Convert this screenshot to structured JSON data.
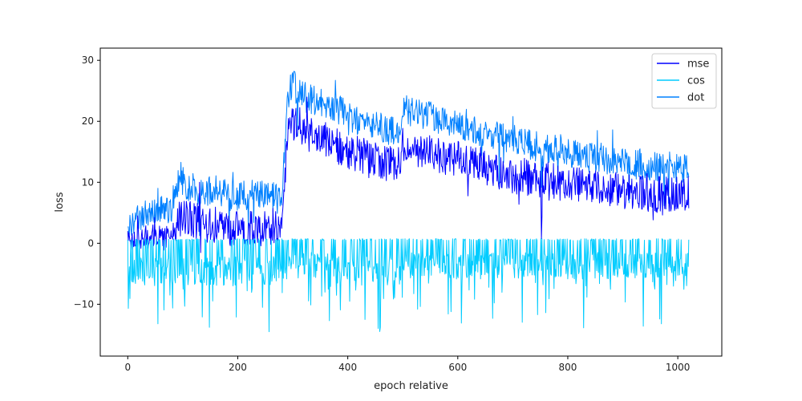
{
  "chart_data": {
    "type": "line",
    "title": "",
    "xlabel": "epoch relative",
    "ylabel": "loss",
    "xlim": [
      -50,
      1080
    ],
    "ylim": [
      -18.5,
      32
    ],
    "xticks": [
      0,
      200,
      400,
      600,
      800,
      1000
    ],
    "yticks": [
      -10,
      0,
      10,
      20,
      30
    ],
    "grid": false,
    "legend_position": "top-right",
    "series": [
      {
        "name": "mse",
        "color": "#0000ff",
        "x": [
          0,
          20,
          40,
          60,
          80,
          90,
          100,
          120,
          140,
          160,
          180,
          200,
          220,
          240,
          260,
          280,
          290,
          300,
          320,
          340,
          360,
          380,
          400,
          420,
          440,
          460,
          480,
          495,
          500,
          520,
          540,
          560,
          580,
          600,
          620,
          640,
          660,
          680,
          700,
          720,
          740,
          760,
          780,
          800,
          820,
          840,
          860,
          880,
          900,
          920,
          940,
          960,
          980,
          1000,
          1020
        ],
        "values": [
          0.5,
          0.8,
          1.2,
          0.8,
          0.8,
          3.5,
          4.5,
          3.8,
          3.0,
          3.0,
          2.5,
          2.5,
          2.5,
          2.5,
          2.8,
          2.8,
          17.0,
          20.0,
          18.0,
          18.0,
          17.0,
          16.0,
          15.0,
          14.5,
          14.0,
          13.5,
          13.0,
          13.0,
          16.0,
          15.5,
          15.0,
          14.5,
          14.0,
          14.0,
          13.0,
          12.5,
          12.0,
          11.5,
          11.0,
          11.0,
          10.5,
          10.5,
          10.0,
          10.0,
          9.5,
          9.5,
          9.0,
          9.0,
          8.5,
          8.5,
          8.0,
          8.0,
          8.0,
          8.0,
          8.0
        ],
        "amplitude": [
          2.0,
          2.0,
          2.0,
          2.0,
          2.0,
          3.0,
          3.0,
          3.0,
          3.0,
          3.0,
          3.0,
          3.0,
          3.0,
          3.0,
          3.0,
          3.0,
          3.0,
          3.0,
          3.0,
          3.0,
          3.0,
          3.0,
          3.0,
          3.0,
          3.0,
          3.0,
          3.0,
          3.0,
          3.0,
          3.0,
          3.0,
          3.0,
          3.0,
          3.0,
          3.0,
          3.0,
          3.0,
          3.0,
          3.0,
          3.0,
          3.0,
          3.0,
          3.0,
          3.0,
          3.0,
          3.0,
          3.0,
          3.0,
          3.0,
          3.0,
          3.0,
          3.0,
          3.0,
          3.0,
          3.0
        ]
      },
      {
        "name": "cos",
        "color": "#00ccff",
        "x": [
          0,
          20,
          40,
          60,
          80,
          100,
          120,
          140,
          160,
          180,
          200,
          220,
          240,
          260,
          280,
          290,
          300,
          320,
          340,
          360,
          380,
          400,
          420,
          440,
          460,
          480,
          495,
          500,
          520,
          540,
          560,
          580,
          600,
          620,
          640,
          660,
          680,
          700,
          720,
          740,
          760,
          780,
          800,
          820,
          840,
          860,
          880,
          900,
          920,
          940,
          960,
          980,
          1000,
          1020
        ],
        "values": [
          -1.5,
          -2.0,
          -2.0,
          -2.0,
          -2.0,
          -2.0,
          -2.0,
          -2.0,
          -2.0,
          -2.0,
          -2.0,
          -2.0,
          -2.0,
          -2.0,
          -2.0,
          -1.5,
          -1.5,
          -1.5,
          -1.5,
          -1.5,
          -1.5,
          -1.5,
          -2.0,
          -2.0,
          -2.0,
          -2.0,
          -2.0,
          -1.5,
          -1.5,
          -1.5,
          -1.5,
          -1.5,
          -1.5,
          -1.5,
          -1.5,
          -1.5,
          -1.5,
          -1.5,
          -1.5,
          -1.5,
          -1.5,
          -1.5,
          -1.5,
          -1.5,
          -1.5,
          -1.5,
          -1.5,
          -1.5,
          -1.5,
          -1.5,
          -1.5,
          -1.5,
          -1.5,
          -1.5
        ],
        "amplitude": [
          2.5,
          2.5,
          2.5,
          2.5,
          2.5,
          2.5,
          2.5,
          2.5,
          2.5,
          2.5,
          2.5,
          2.5,
          2.5,
          2.5,
          2.5,
          2.2,
          2.2,
          2.2,
          2.2,
          2.2,
          2.2,
          2.2,
          2.5,
          2.5,
          2.5,
          2.5,
          2.5,
          2.2,
          2.2,
          2.2,
          2.2,
          2.2,
          2.2,
          2.2,
          2.2,
          2.2,
          2.2,
          2.2,
          2.2,
          2.2,
          2.2,
          2.2,
          2.2,
          2.2,
          2.2,
          2.2,
          2.2,
          2.2,
          2.2,
          2.2,
          2.2,
          2.2,
          2.2,
          2.2
        ]
      },
      {
        "name": "dot",
        "color": "#0080ff",
        "x": [
          0,
          20,
          40,
          60,
          80,
          90,
          100,
          120,
          140,
          160,
          180,
          200,
          220,
          240,
          260,
          280,
          290,
          300,
          320,
          340,
          360,
          380,
          400,
          420,
          440,
          460,
          480,
          495,
          500,
          520,
          540,
          560,
          580,
          600,
          620,
          640,
          660,
          680,
          700,
          720,
          740,
          760,
          780,
          800,
          820,
          840,
          860,
          880,
          900,
          920,
          940,
          960,
          980,
          1000,
          1020
        ],
        "values": [
          2.5,
          4.0,
          5.0,
          5.5,
          6.0,
          10.0,
          10.0,
          9.0,
          8.5,
          8.5,
          8.0,
          7.5,
          8.0,
          8.0,
          7.5,
          7.5,
          24.0,
          26.0,
          24.0,
          23.5,
          22.5,
          22.0,
          21.0,
          20.0,
          19.5,
          19.0,
          18.5,
          18.5,
          22.0,
          21.5,
          21.0,
          20.5,
          20.0,
          19.5,
          19.0,
          18.5,
          18.0,
          17.5,
          17.0,
          16.5,
          16.0,
          15.5,
          15.5,
          15.0,
          14.5,
          14.0,
          14.0,
          13.5,
          13.5,
          13.0,
          13.0,
          12.5,
          12.5,
          12.5,
          12.5
        ],
        "amplitude": [
          2.0,
          2.5,
          2.5,
          2.5,
          2.5,
          2.5,
          2.5,
          2.5,
          2.5,
          2.5,
          2.5,
          2.5,
          2.5,
          2.5,
          2.5,
          2.5,
          2.5,
          2.5,
          2.5,
          2.5,
          2.5,
          2.5,
          2.5,
          2.5,
          2.5,
          2.5,
          2.5,
          2.5,
          2.5,
          2.5,
          2.5,
          2.5,
          2.5,
          2.5,
          2.5,
          2.5,
          2.5,
          2.5,
          2.5,
          2.5,
          2.5,
          2.5,
          2.5,
          2.5,
          2.5,
          2.5,
          2.5,
          2.5,
          2.5,
          2.5,
          2.5,
          2.5,
          2.5,
          2.5,
          2.5
        ]
      }
    ]
  }
}
